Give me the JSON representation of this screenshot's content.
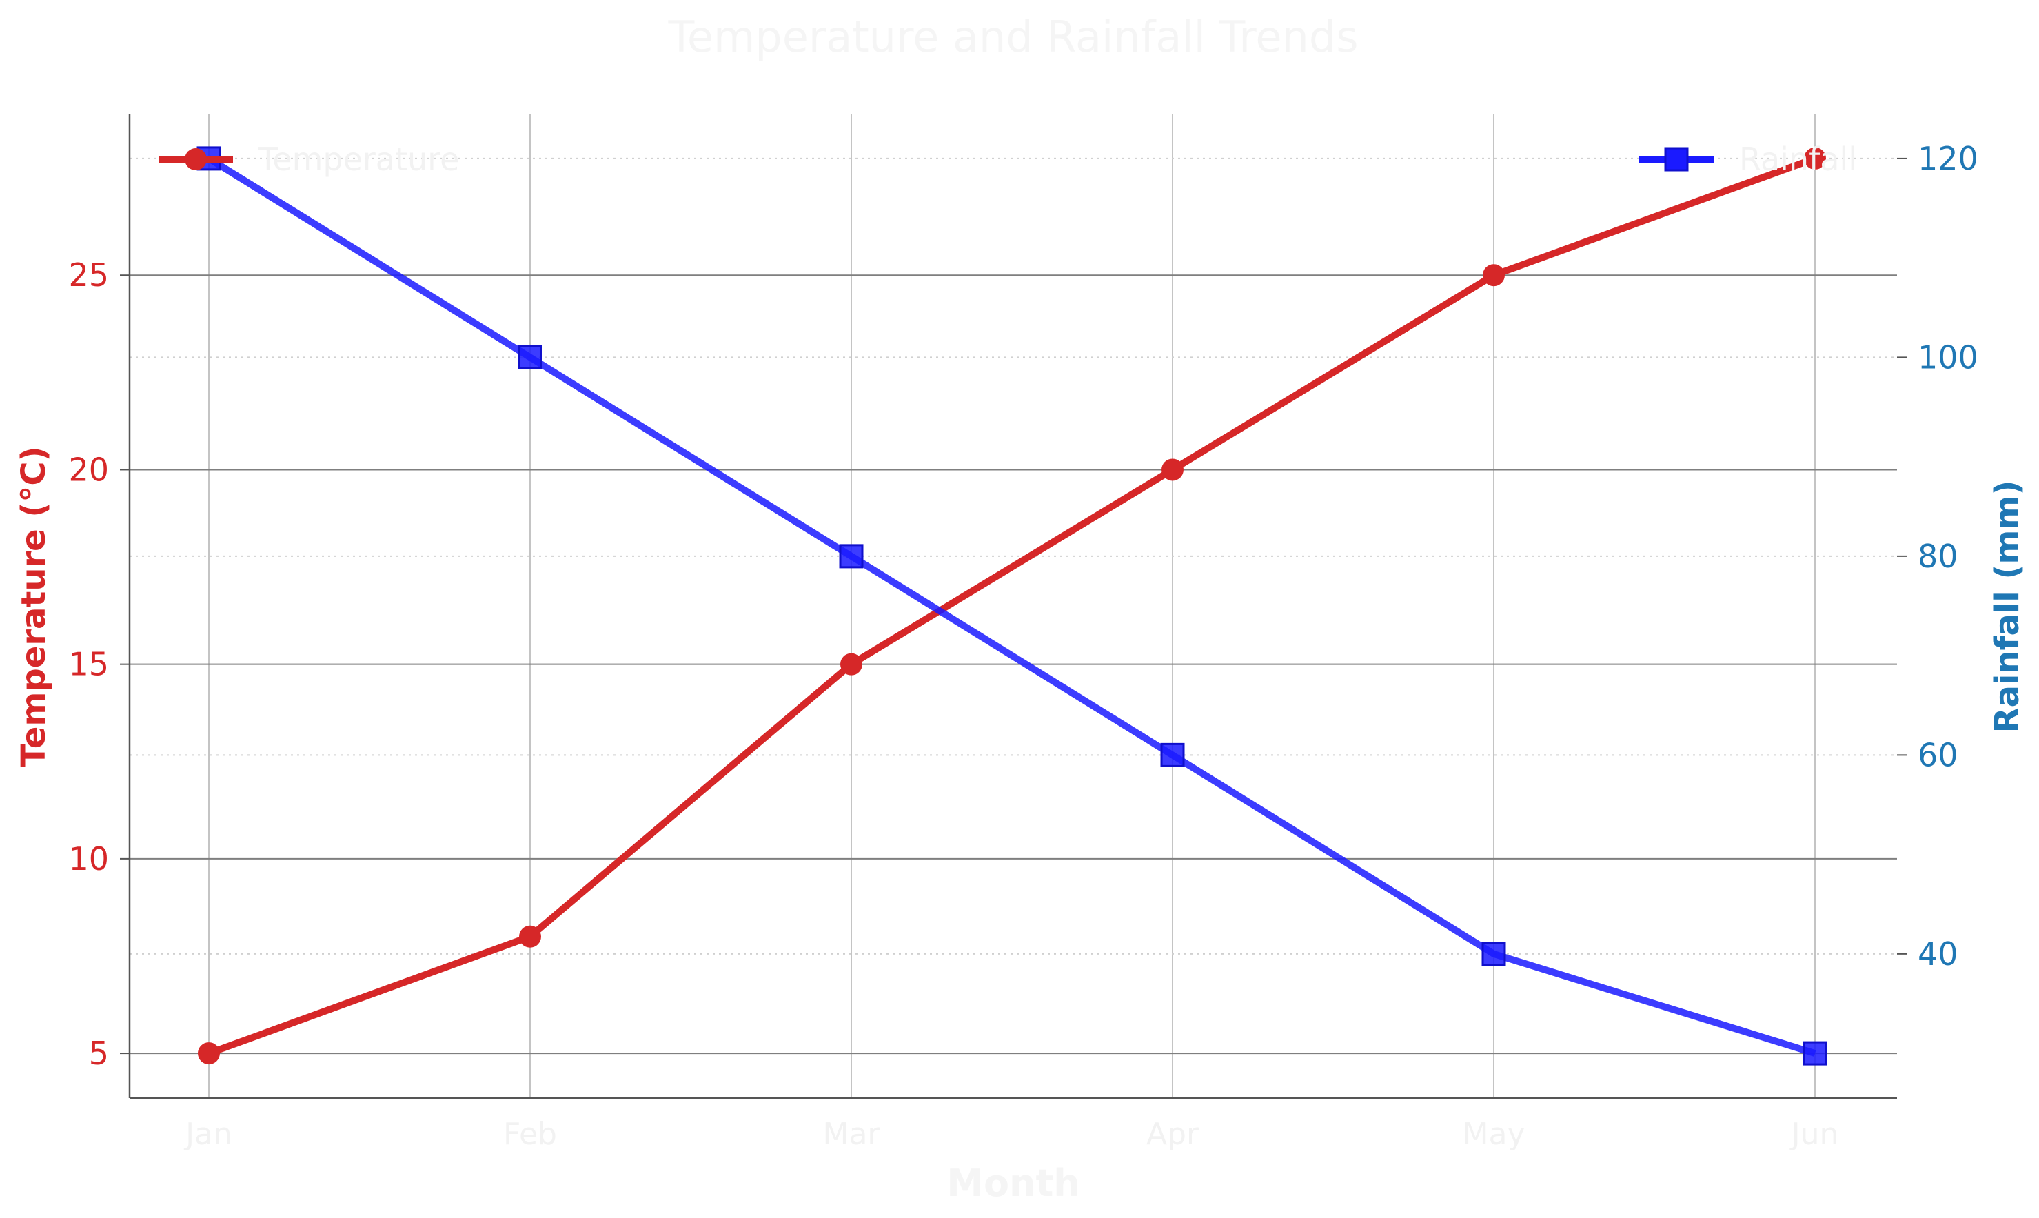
{
  "chart_data": {
    "type": "line",
    "title": "Temperature and Rainfall Trends",
    "xlabel": "Month",
    "categories": [
      "Jan",
      "Feb",
      "Mar",
      "Apr",
      "May",
      "Jun"
    ],
    "y_left": {
      "label": "Temperature (°C)",
      "color": "#d62728",
      "ylim": [
        3.85,
        29.15
      ],
      "ticks": [
        5,
        10,
        15,
        20,
        25
      ]
    },
    "y_right": {
      "label": "Rainfall (mm)",
      "color": "#1f77b4",
      "ylim": [
        25.5,
        124.5
      ],
      "ticks": [
        40,
        60,
        80,
        100,
        120
      ]
    },
    "series": [
      {
        "name": "Temperature",
        "axis": "left",
        "color": "#d62728",
        "marker": "circle",
        "values": [
          5,
          8,
          15,
          20,
          25,
          28
        ]
      },
      {
        "name": "Rainfall",
        "axis": "right",
        "color": "#1a1aff",
        "marker": "square",
        "values": [
          120,
          100,
          80,
          60,
          40,
          30
        ]
      }
    ],
    "legend": {
      "left": "top-left",
      "right": "top-right"
    },
    "grid": true
  }
}
